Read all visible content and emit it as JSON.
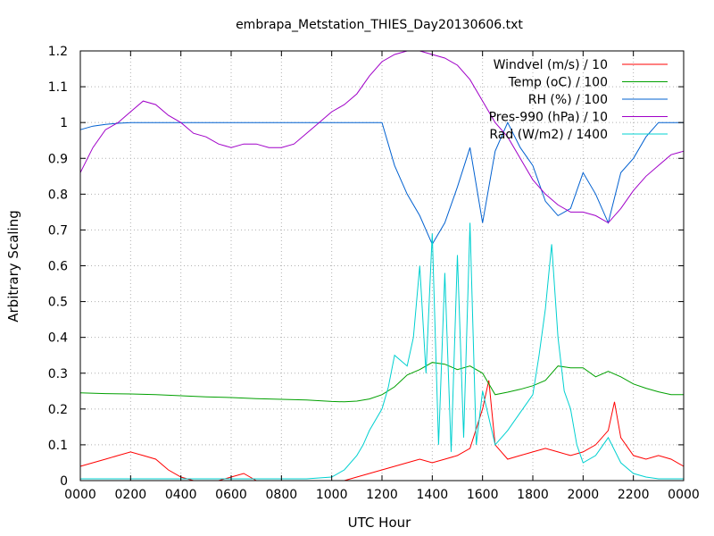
{
  "chart_data": {
    "type": "line",
    "title": "embrapa_Metstation_THIES_Day20130606.txt",
    "xlabel": "UTC Hour",
    "ylabel": "Arbitrary Scaling",
    "xlim": [
      0,
      24
    ],
    "ylim": [
      0,
      1.2
    ],
    "grid": true,
    "legend_position": "top-right",
    "x_tick_labels": [
      "0000",
      "0200",
      "0400",
      "0600",
      "0800",
      "1000",
      "1200",
      "1400",
      "1600",
      "1800",
      "2000",
      "2200",
      "0000"
    ],
    "y_tick_labels": [
      "0",
      "0.1",
      "0.2",
      "0.3",
      "0.4",
      "0.5",
      "0.6",
      "0.7",
      "0.8",
      "0.9",
      "1",
      "1.1",
      "1.2"
    ],
    "series": [
      {
        "name": "Windvel (m/s) / 10",
        "color": "#ff0000",
        "x": [
          0,
          0.5,
          1,
          1.5,
          2,
          2.5,
          3,
          3.5,
          4,
          4.5,
          5,
          5.5,
          6,
          6.5,
          7,
          7.5,
          8,
          8.5,
          9,
          9.5,
          10,
          10.5,
          11,
          11.5,
          12,
          12.5,
          13,
          13.5,
          14,
          14.5,
          15,
          15.5,
          16,
          16.25,
          16.5,
          17,
          17.5,
          18,
          18.5,
          19,
          19.5,
          20,
          20.5,
          21,
          21.25,
          21.5,
          22,
          22.5,
          23,
          23.5,
          24
        ],
        "y": [
          0.04,
          0.05,
          0.06,
          0.07,
          0.08,
          0.07,
          0.06,
          0.03,
          0.01,
          0.0,
          0.0,
          0.0,
          0.01,
          0.02,
          0.0,
          0.0,
          0.0,
          0.0,
          0.0,
          0.0,
          0.0,
          0.0,
          0.01,
          0.02,
          0.03,
          0.04,
          0.05,
          0.06,
          0.05,
          0.06,
          0.07,
          0.09,
          0.2,
          0.28,
          0.1,
          0.06,
          0.07,
          0.08,
          0.09,
          0.08,
          0.07,
          0.08,
          0.1,
          0.14,
          0.22,
          0.12,
          0.07,
          0.06,
          0.07,
          0.06,
          0.04
        ]
      },
      {
        "name": "Temp (oC) / 100",
        "color": "#00a000",
        "x": [
          0,
          1,
          2,
          3,
          4,
          5,
          6,
          7,
          8,
          9,
          10,
          10.5,
          11,
          11.5,
          12,
          12.5,
          13,
          13.5,
          14,
          14.5,
          15,
          15.5,
          16,
          16.5,
          17,
          17.5,
          18,
          18.5,
          19,
          19.5,
          20,
          20.5,
          21,
          21.5,
          22,
          22.5,
          23,
          23.5,
          24
        ],
        "y": [
          0.245,
          0.243,
          0.242,
          0.24,
          0.237,
          0.234,
          0.232,
          0.229,
          0.227,
          0.225,
          0.221,
          0.22,
          0.222,
          0.228,
          0.24,
          0.262,
          0.295,
          0.31,
          0.33,
          0.325,
          0.31,
          0.32,
          0.3,
          0.24,
          0.247,
          0.255,
          0.265,
          0.28,
          0.32,
          0.315,
          0.315,
          0.29,
          0.305,
          0.29,
          0.27,
          0.258,
          0.248,
          0.24,
          0.24
        ]
      },
      {
        "name": "RH (%) / 100",
        "color": "#0060d0",
        "x": [
          0,
          0.5,
          1,
          1.5,
          2,
          3,
          4,
          5,
          6,
          7,
          8,
          9,
          10,
          11,
          12,
          12.5,
          13,
          13.5,
          14,
          14.5,
          15,
          15.5,
          16,
          16.5,
          17,
          17.5,
          18,
          18.5,
          19,
          19.5,
          20,
          20.5,
          21,
          21.5,
          22,
          22.5,
          23,
          23.5,
          24
        ],
        "y": [
          0.98,
          0.99,
          0.995,
          0.998,
          1.0,
          1.0,
          1.0,
          1.0,
          1.0,
          1.0,
          1.0,
          1.0,
          1.0,
          1.0,
          1.0,
          0.88,
          0.8,
          0.74,
          0.66,
          0.72,
          0.82,
          0.93,
          0.72,
          0.92,
          1.0,
          0.93,
          0.88,
          0.78,
          0.74,
          0.76,
          0.86,
          0.8,
          0.72,
          0.86,
          0.9,
          0.96,
          1.0,
          1.0,
          1.0
        ]
      },
      {
        "name": "Pres-990 (hPa) / 10",
        "color": "#a000c8",
        "x": [
          0,
          0.5,
          1,
          1.5,
          2,
          2.5,
          3,
          3.5,
          4,
          4.5,
          5,
          5.5,
          6,
          6.5,
          7,
          7.5,
          8,
          8.5,
          9,
          9.5,
          10,
          10.5,
          11,
          11.5,
          12,
          12.5,
          13,
          13.5,
          14,
          14.5,
          15,
          15.5,
          16,
          16.5,
          17,
          17.5,
          18,
          18.5,
          19,
          19.5,
          20,
          20.5,
          21,
          21.5,
          22,
          22.5,
          23,
          23.5,
          24
        ],
        "y": [
          0.86,
          0.93,
          0.98,
          1.0,
          1.03,
          1.06,
          1.05,
          1.02,
          1.0,
          0.97,
          0.96,
          0.94,
          0.93,
          0.94,
          0.94,
          0.93,
          0.93,
          0.94,
          0.97,
          1.0,
          1.03,
          1.05,
          1.08,
          1.13,
          1.17,
          1.19,
          1.2,
          1.2,
          1.19,
          1.18,
          1.16,
          1.12,
          1.06,
          1.0,
          0.96,
          0.9,
          0.84,
          0.8,
          0.77,
          0.75,
          0.75,
          0.74,
          0.72,
          0.76,
          0.81,
          0.85,
          0.88,
          0.91,
          0.92
        ]
      },
      {
        "name": "Rad (W/m2) / 1400",
        "color": "#00d0d0",
        "x": [
          0,
          1,
          2,
          3,
          4,
          5,
          6,
          7,
          8,
          9,
          10,
          10.5,
          11,
          11.25,
          11.5,
          12,
          12.25,
          12.5,
          13,
          13.25,
          13.5,
          13.75,
          14,
          14.25,
          14.5,
          14.75,
          15,
          15.25,
          15.5,
          15.75,
          16,
          16.5,
          17,
          17.5,
          18,
          18.25,
          18.5,
          18.75,
          19,
          19.25,
          19.5,
          19.75,
          20,
          20.5,
          21,
          21.5,
          22,
          22.5,
          23,
          24
        ],
        "y": [
          0.005,
          0.005,
          0.005,
          0.005,
          0.005,
          0.005,
          0.005,
          0.005,
          0.005,
          0.005,
          0.01,
          0.03,
          0.07,
          0.1,
          0.14,
          0.2,
          0.26,
          0.35,
          0.32,
          0.4,
          0.6,
          0.3,
          0.69,
          0.1,
          0.58,
          0.08,
          0.63,
          0.12,
          0.72,
          0.1,
          0.25,
          0.1,
          0.14,
          0.19,
          0.24,
          0.35,
          0.48,
          0.66,
          0.4,
          0.25,
          0.2,
          0.1,
          0.05,
          0.07,
          0.12,
          0.05,
          0.02,
          0.01,
          0.005,
          0.005
        ]
      }
    ]
  }
}
